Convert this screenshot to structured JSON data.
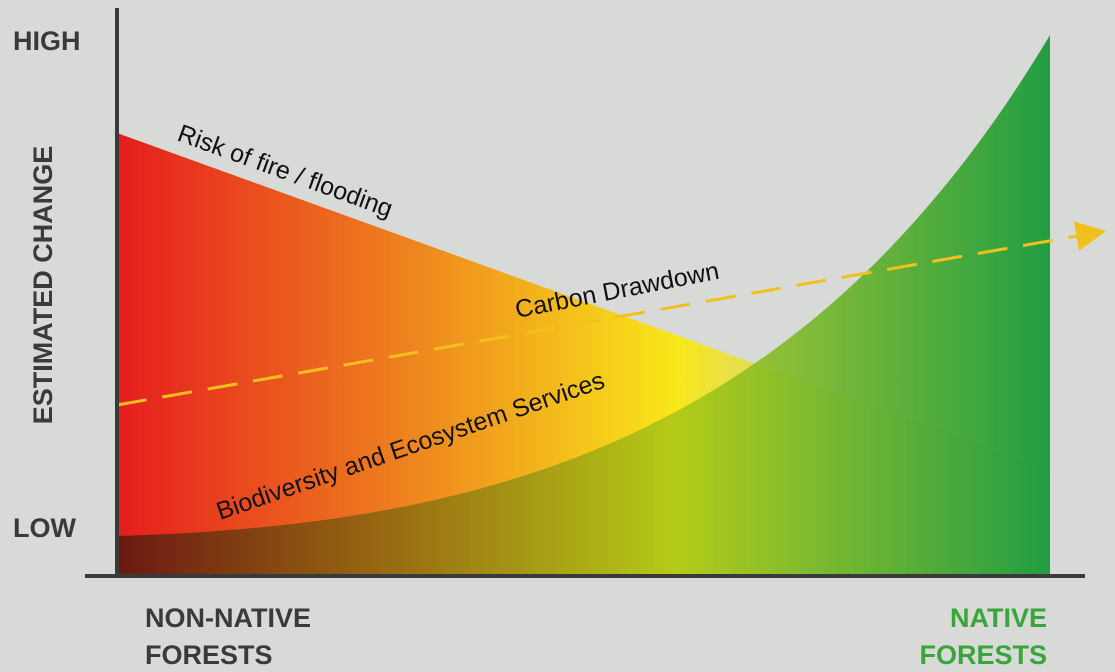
{
  "y_axis": {
    "label": "ESTIMATED CHANGE",
    "high": "HIGH",
    "low": "LOW"
  },
  "x_axis": {
    "left": [
      "NON-NATIVE",
      "FORESTS"
    ],
    "right": [
      "NATIVE",
      "FORESTS"
    ]
  },
  "curves": {
    "risk": "Risk of fire / flooding",
    "carbon": "Carbon Drawdown",
    "biodiversity": "Biodiversity and Ecosystem Services"
  }
}
